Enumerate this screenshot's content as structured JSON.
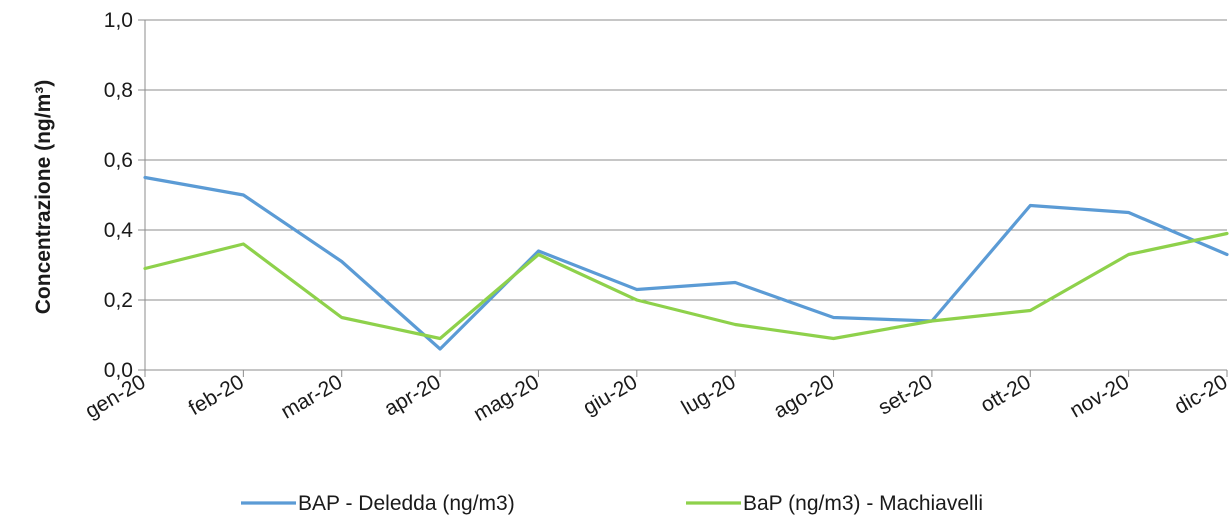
{
  "chart_data": {
    "type": "line",
    "ylabel": "Concentrazione (ng/m³)",
    "ylim": [
      0,
      1.0
    ],
    "yticks": [
      "0,0",
      "0,2",
      "0,4",
      "0,6",
      "0,8",
      "1,0"
    ],
    "grid": true,
    "legend_position": "bottom",
    "categories": [
      "gen-20",
      "feb-20",
      "mar-20",
      "apr-20",
      "mag-20",
      "giu-20",
      "lug-20",
      "ago-20",
      "set-20",
      "ott-20",
      "nov-20",
      "dic-20"
    ],
    "series": [
      {
        "name": "BAP - Deledda (ng/m3)",
        "color": "#5b9bd5",
        "values": [
          0.55,
          0.5,
          0.31,
          0.06,
          0.34,
          0.23,
          0.25,
          0.15,
          0.14,
          0.47,
          0.45,
          0.33
        ]
      },
      {
        "name": "BaP (ng/m3) - Machiavelli",
        "color": "#8ed14b",
        "values": [
          0.29,
          0.36,
          0.15,
          0.09,
          0.33,
          0.2,
          0.13,
          0.09,
          0.14,
          0.17,
          0.33,
          0.39
        ]
      }
    ]
  }
}
